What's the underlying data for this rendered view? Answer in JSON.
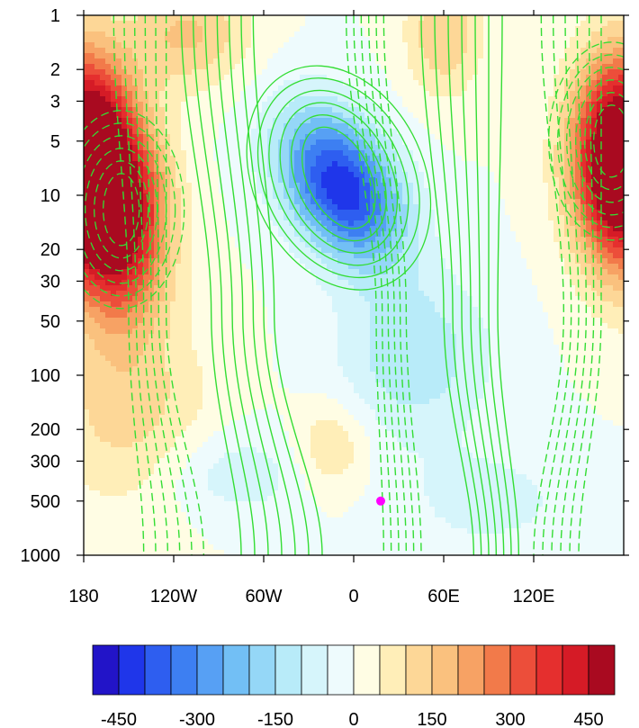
{
  "chart_data": {
    "type": "heatmap",
    "title": "",
    "xlabel": "",
    "ylabel": "",
    "x_ticks": [
      {
        "value": -180,
        "label": "180"
      },
      {
        "value": -120,
        "label": "120W"
      },
      {
        "value": -60,
        "label": "60W"
      },
      {
        "value": 0,
        "label": "0"
      },
      {
        "value": 60,
        "label": "60E"
      },
      {
        "value": 120,
        "label": "120E"
      }
    ],
    "x_range": [
      -180,
      180
    ],
    "y_ticks": [
      {
        "value": 1,
        "label": "1"
      },
      {
        "value": 2,
        "label": "2"
      },
      {
        "value": 3,
        "label": "3"
      },
      {
        "value": 5,
        "label": "5"
      },
      {
        "value": 10,
        "label": "10"
      },
      {
        "value": 20,
        "label": "20"
      },
      {
        "value": 30,
        "label": "30"
      },
      {
        "value": 50,
        "label": "50"
      },
      {
        "value": 100,
        "label": "100"
      },
      {
        "value": 200,
        "label": "200"
      },
      {
        "value": 300,
        "label": "300"
      },
      {
        "value": 500,
        "label": "500"
      },
      {
        "value": 1000,
        "label": "1000"
      }
    ],
    "y_range": [
      1,
      1000
    ],
    "y_scale": "log",
    "y_inverted": true,
    "colorbar": {
      "levels": [
        -500,
        -450,
        -400,
        -350,
        -300,
        -250,
        -200,
        -150,
        -100,
        -50,
        0,
        50,
        100,
        150,
        200,
        250,
        300,
        350,
        400,
        450,
        500
      ],
      "colors": [
        "#2214c8",
        "#1f36ea",
        "#2e5ef0",
        "#3d7ff2",
        "#57a0f4",
        "#72bff5",
        "#95d7f7",
        "#b8ebf9",
        "#d6f5fb",
        "#eefbfd",
        "#fffde4",
        "#ffeeb8",
        "#fdd797",
        "#fac17e",
        "#f7a264",
        "#f27a4a",
        "#ec4e3a",
        "#e52f2e",
        "#d51b26",
        "#a90a20"
      ],
      "tick_labels": [
        {
          "value": -450,
          "label": "-450"
        },
        {
          "value": -300,
          "label": "-300"
        },
        {
          "value": -150,
          "label": "-150"
        },
        {
          "value": 0,
          "label": "0"
        },
        {
          "value": 150,
          "label": "150"
        },
        {
          "value": 300,
          "label": "300"
        },
        {
          "value": 450,
          "label": "450"
        }
      ]
    },
    "field_features": [
      {
        "name": "negative-anomaly-center",
        "lon": -10,
        "lev": 8,
        "value": -420
      },
      {
        "name": "positive-anomaly-west",
        "lon": -150,
        "lev": 15,
        "value": 390
      },
      {
        "name": "positive-anomaly-east",
        "lon": 170,
        "lev": 5,
        "value": 420
      }
    ],
    "contour_lines": {
      "color": "#33dd33",
      "positive_style": "solid",
      "negative_style": "dashed"
    },
    "marker": {
      "lon": 18,
      "lev": 500,
      "color": "#ff00ff"
    },
    "grid": false,
    "legend": "bottom"
  }
}
